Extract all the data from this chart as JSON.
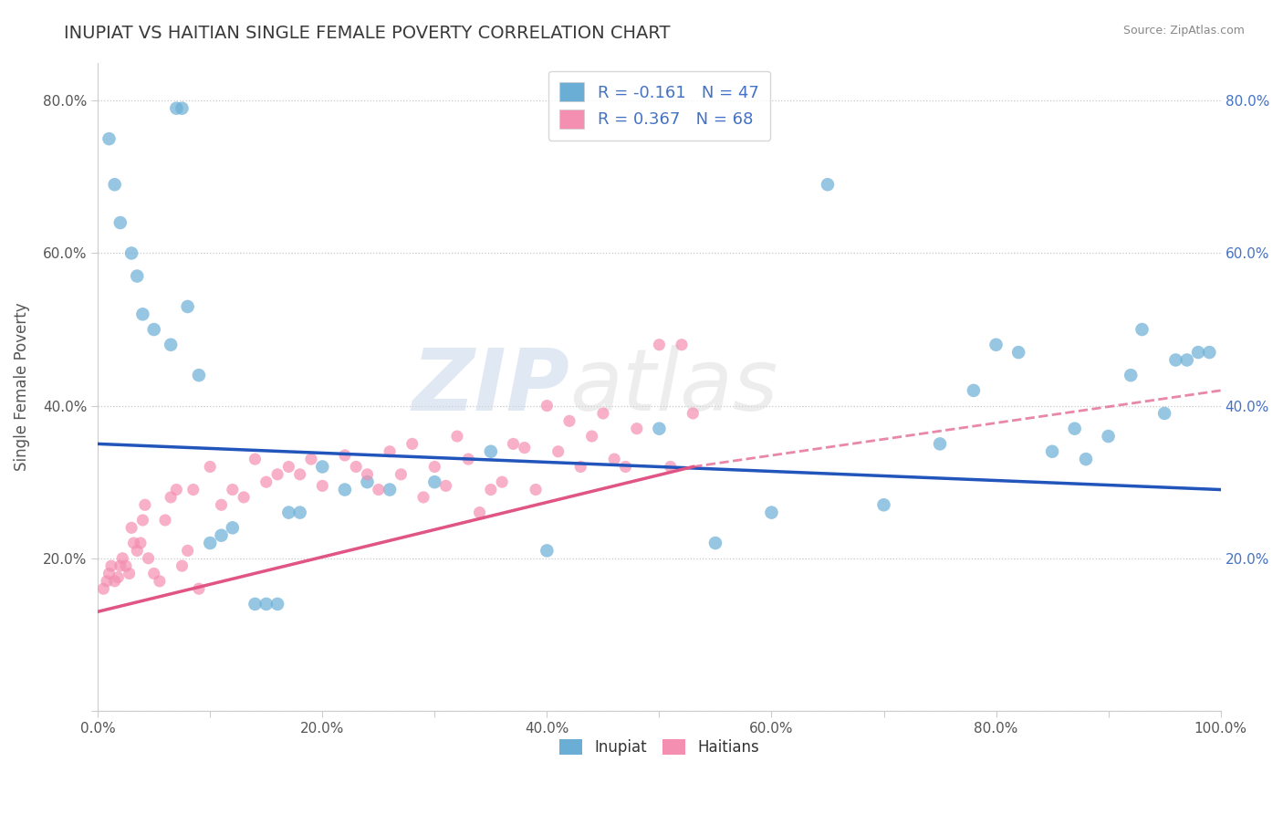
{
  "title": "INUPIAT VS HAITIAN SINGLE FEMALE POVERTY CORRELATION CHART",
  "source": "Source: ZipAtlas.com",
  "xlabel": "",
  "ylabel": "Single Female Poverty",
  "legend_entries": [
    {
      "label": "R = -0.161   N = 47",
      "color": "#a8c4e0"
    },
    {
      "label": "R = 0.367   N = 68",
      "color": "#f4b8c8"
    }
  ],
  "legend_labels": [
    "Inupiat",
    "Haitians"
  ],
  "title_color": "#3a3a3a",
  "title_fontsize": 14,
  "watermark_zip": "ZIP",
  "watermark_atlas": "atlas",
  "inupiat_x": [
    1.0,
    1.5,
    2.0,
    3.0,
    3.5,
    4.0,
    5.0,
    6.5,
    7.0,
    7.5,
    8.0,
    9.0,
    10.0,
    11.0,
    12.0,
    14.0,
    15.0,
    16.0,
    17.0,
    18.0,
    20.0,
    22.0,
    24.0,
    26.0,
    30.0,
    35.0,
    40.0,
    50.0,
    55.0,
    60.0,
    65.0,
    70.0,
    75.0,
    78.0,
    80.0,
    82.0,
    85.0,
    87.0,
    88.0,
    90.0,
    92.0,
    93.0,
    95.0,
    96.0,
    97.0,
    98.0,
    99.0
  ],
  "inupiat_y": [
    75.0,
    69.0,
    64.0,
    60.0,
    57.0,
    52.0,
    50.0,
    48.0,
    79.0,
    79.0,
    53.0,
    44.0,
    22.0,
    23.0,
    24.0,
    14.0,
    14.0,
    14.0,
    26.0,
    26.0,
    32.0,
    29.0,
    30.0,
    29.0,
    30.0,
    34.0,
    21.0,
    37.0,
    22.0,
    26.0,
    69.0,
    27.0,
    35.0,
    42.0,
    48.0,
    47.0,
    34.0,
    37.0,
    33.0,
    36.0,
    44.0,
    50.0,
    39.0,
    46.0,
    46.0,
    47.0,
    47.0
  ],
  "haitians_x": [
    0.5,
    0.8,
    1.0,
    1.2,
    1.5,
    1.8,
    2.0,
    2.2,
    2.5,
    2.8,
    3.0,
    3.2,
    3.5,
    3.8,
    4.0,
    4.2,
    4.5,
    5.0,
    5.5,
    6.0,
    6.5,
    7.0,
    7.5,
    8.0,
    8.5,
    9.0,
    10.0,
    11.0,
    12.0,
    13.0,
    14.0,
    15.0,
    16.0,
    17.0,
    18.0,
    19.0,
    20.0,
    22.0,
    23.0,
    24.0,
    25.0,
    26.0,
    27.0,
    28.0,
    29.0,
    30.0,
    31.0,
    32.0,
    33.0,
    34.0,
    35.0,
    36.0,
    37.0,
    38.0,
    39.0,
    40.0,
    41.0,
    42.0,
    43.0,
    44.0,
    45.0,
    46.0,
    47.0,
    48.0,
    50.0,
    51.0,
    52.0,
    53.0
  ],
  "haitians_y": [
    16.0,
    17.0,
    18.0,
    19.0,
    17.0,
    17.5,
    19.0,
    20.0,
    19.0,
    18.0,
    24.0,
    22.0,
    21.0,
    22.0,
    25.0,
    27.0,
    20.0,
    18.0,
    17.0,
    25.0,
    28.0,
    29.0,
    19.0,
    21.0,
    29.0,
    16.0,
    32.0,
    27.0,
    29.0,
    28.0,
    33.0,
    30.0,
    31.0,
    32.0,
    31.0,
    33.0,
    29.5,
    33.5,
    32.0,
    31.0,
    29.0,
    34.0,
    31.0,
    35.0,
    28.0,
    32.0,
    29.5,
    36.0,
    33.0,
    26.0,
    29.0,
    30.0,
    35.0,
    34.5,
    29.0,
    40.0,
    34.0,
    38.0,
    32.0,
    36.0,
    39.0,
    33.0,
    32.0,
    37.0,
    48.0,
    32.0,
    48.0,
    39.0
  ],
  "inupiat_color": "#6aaed6",
  "haitians_color": "#f48fb1",
  "inupiat_line_color": "#2255bb",
  "haitians_line_color": "#e05585",
  "bg_color": "#ffffff",
  "plot_bg_color": "#ffffff",
  "grid_color": "#c8c8c8",
  "xlim": [
    0,
    100
  ],
  "ylim": [
    0,
    85
  ],
  "xticks": [
    0,
    10,
    20,
    30,
    40,
    50,
    60,
    70,
    80,
    90,
    100
  ],
  "yticks": [
    0,
    20,
    40,
    60,
    80
  ],
  "xticklabels": [
    "0.0%",
    "",
    "20.0%",
    "",
    "40.0%",
    "",
    "60.0%",
    "",
    "80.0%",
    "",
    "100.0%"
  ],
  "yticklabels": [
    "",
    "20.0%",
    "40.0%",
    "60.0%",
    "80.0%"
  ],
  "right_yticklabels": [
    "20.0%",
    "40.0%",
    "60.0%",
    "80.0%"
  ],
  "right_ytick_positions": [
    20,
    40,
    60,
    80
  ],
  "haitian_solid_end": 53.0
}
